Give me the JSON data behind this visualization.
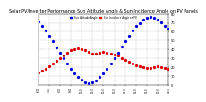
{
  "title": "Solar PV/Inverter Performance Sun Altitude Angle & Sun Incidence Angle on PV Panels",
  "title_fontsize": 3.5,
  "background_color": "#ffffff",
  "grid_color": "#aaaaaa",
  "ylim": [
    0,
    80
  ],
  "xlim": [
    0,
    36
  ],
  "yticks": [
    0,
    10,
    20,
    30,
    40,
    50,
    60,
    70,
    80
  ],
  "xtick_labels": [
    "6:00",
    "7:00",
    "8:00",
    "9:00",
    "10:00",
    "11:00",
    "12:00",
    "13:00",
    "14:00",
    "15:00",
    "16:00",
    "17:00",
    "18:00"
  ],
  "legend_altitude": "Sun Altitude Angle",
  "legend_incidence": "Sun Incidence Angle on PV",
  "altitude_color": "#0000dd",
  "incidence_color": "#dd0000",
  "marker_size": 1.8,
  "sun_altitude_x": [
    0,
    1,
    2,
    3,
    4,
    5,
    6,
    7,
    8,
    9,
    10,
    11,
    12,
    13,
    14,
    15,
    16,
    17,
    18,
    19,
    20,
    21,
    22,
    23,
    24,
    25,
    26,
    27,
    28,
    29,
    30,
    31,
    32,
    33,
    34,
    35,
    36
  ],
  "sun_altitude_y": [
    72,
    67,
    61,
    55,
    49,
    42,
    36,
    30,
    24,
    18,
    13,
    9,
    6,
    3,
    2,
    3,
    5,
    9,
    13,
    18,
    24,
    30,
    36,
    43,
    49,
    55,
    61,
    66,
    70,
    74,
    76,
    77,
    76,
    74,
    71,
    67,
    63
  ],
  "sun_incidence_x": [
    0,
    1,
    2,
    3,
    4,
    5,
    6,
    7,
    8,
    9,
    10,
    11,
    12,
    13,
    14,
    15,
    16,
    17,
    18,
    19,
    20,
    21,
    22,
    23,
    24,
    25,
    26,
    27,
    28,
    29,
    30,
    31,
    32,
    33,
    34,
    35,
    36
  ],
  "sun_incidence_y": [
    14,
    16,
    18,
    21,
    24,
    27,
    30,
    33,
    36,
    39,
    40,
    41,
    40,
    39,
    37,
    35,
    35,
    36,
    37,
    36,
    35,
    34,
    33,
    30,
    28,
    26,
    24,
    22,
    21,
    20,
    19,
    19,
    20,
    21,
    20,
    19,
    18
  ]
}
